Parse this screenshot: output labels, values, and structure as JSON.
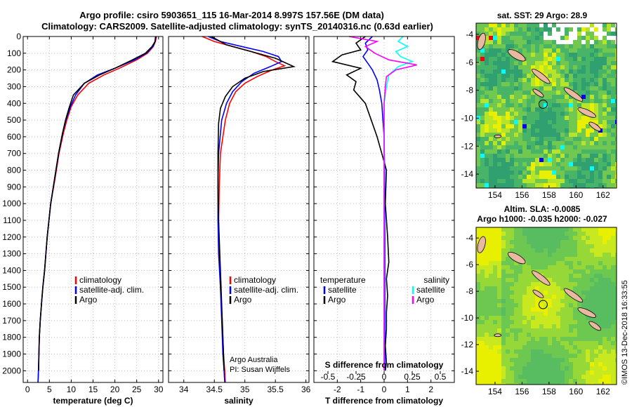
{
  "title_line1": "Argo profile: csiro 5903651_115 16-Mar-2014 8.997S 157.56E (DM data)",
  "title_line2": "Climatology: CARS2009. Satellite-adjusted climatology: synTS_20140316.nc (0.63d earlier)",
  "credit": "Argo Australia",
  "pi": "PI: Susan Wijffels",
  "stamp": "©IMOS 13-Dec-2018 16:33:55",
  "colors": {
    "climatology": "#ff0000",
    "satellite": "#0000ff",
    "argo": "#000000",
    "sat_t": "#0000ff",
    "sat_s": "#00ffff",
    "argo_s": "#ff00ff"
  },
  "chart_data": [
    {
      "id": "temp",
      "type": "line",
      "xlabel": "temperature (deg C)",
      "ylabel": "",
      "xlim": [
        -1,
        31
      ],
      "ylim": [
        2070,
        0
      ],
      "xticks": [
        "0",
        "5",
        "10",
        "15",
        "20",
        "25",
        "30"
      ],
      "xtick_values": [
        0,
        5,
        10,
        15,
        20,
        25,
        30
      ],
      "yticks": [
        "0",
        "100",
        "200",
        "300",
        "400",
        "500",
        "600",
        "700",
        "800",
        "900",
        "1000",
        "1100",
        "1200",
        "1300",
        "1400",
        "1500",
        "1600",
        "1700",
        "1800",
        "1900",
        "2000"
      ],
      "ytick_values": [
        0,
        100,
        200,
        300,
        400,
        500,
        600,
        700,
        800,
        900,
        1000,
        1100,
        1200,
        1300,
        1400,
        1500,
        1600,
        1700,
        1800,
        1900,
        2000
      ],
      "legend": [
        "climatology",
        "satellite-adj. clim.",
        "Argo"
      ],
      "series": [
        {
          "name": "climatology",
          "x": [
            29.5,
            29.3,
            28.8,
            27.5,
            25,
            21,
            17.5,
            14,
            11.5,
            10,
            9,
            8.2,
            7.2,
            6.3,
            5.3,
            4.5,
            3.9,
            3.5,
            3.2,
            2.9,
            2.7,
            2.6,
            2.5,
            2.4
          ],
          "y": [
            0,
            30,
            60,
            100,
            140,
            190,
            230,
            280,
            350,
            420,
            500,
            580,
            700,
            850,
            1000,
            1200,
            1400,
            1500,
            1600,
            1700,
            1800,
            1900,
            2000,
            2070
          ]
        },
        {
          "name": "satellite-adj. clim.",
          "x": [
            29.3,
            29.2,
            28.7,
            27.2,
            24.5,
            20,
            16,
            13,
            11,
            9.8,
            8.8,
            8,
            7.1,
            6.2,
            5.3,
            4.5,
            3.9,
            3.5,
            3.2,
            2.9,
            2.7,
            2.6,
            2.5,
            2.4
          ],
          "y": [
            0,
            30,
            60,
            100,
            140,
            190,
            230,
            280,
            350,
            420,
            500,
            580,
            700,
            850,
            1000,
            1200,
            1400,
            1500,
            1600,
            1700,
            1800,
            1900,
            2000,
            2070
          ]
        },
        {
          "name": "Argo",
          "x": [
            29.4,
            29.2,
            28.5,
            27,
            24,
            20,
            16.5,
            13,
            10.5,
            9.6,
            8.7,
            8,
            7.1,
            6.2,
            5.3,
            4.5,
            3.9,
            3.5,
            3.2,
            2.9,
            2.7,
            2.6,
            2.55
          ],
          "y": [
            0,
            30,
            60,
            100,
            140,
            190,
            230,
            280,
            350,
            420,
            500,
            580,
            700,
            850,
            1000,
            1200,
            1400,
            1500,
            1600,
            1700,
            1800,
            1900,
            2000
          ]
        }
      ]
    },
    {
      "id": "sal",
      "type": "line",
      "xlabel": "salinity",
      "ylabel": "",
      "xlim": [
        33.75,
        36.05
      ],
      "ylim": [
        2070,
        0
      ],
      "xticks": [
        "34",
        "34.5",
        "35",
        "35.5",
        "36"
      ],
      "xtick_values": [
        34,
        34.5,
        35,
        35.5,
        36
      ],
      "legend": [
        "climatology",
        "satellite-adj. clim.",
        "Argo"
      ],
      "series": [
        {
          "name": "climatology",
          "x": [
            34.3,
            34.5,
            34.8,
            35.1,
            35.35,
            35.5,
            35.65,
            35.45,
            35.2,
            35.0,
            34.85,
            34.75,
            34.68,
            34.6,
            34.58,
            34.57,
            34.58,
            34.6,
            34.63,
            34.65,
            34.67,
            34.68
          ],
          "y": [
            0,
            30,
            60,
            90,
            120,
            150,
            175,
            200,
            240,
            280,
            330,
            400,
            500,
            700,
            900,
            1100,
            1300,
            1500,
            1700,
            1900,
            2000,
            2070
          ]
        },
        {
          "name": "satellite-adj. clim.",
          "x": [
            34.4,
            34.6,
            34.95,
            35.3,
            35.55,
            35.6,
            35.45,
            35.15,
            34.95,
            34.8,
            34.7,
            34.62,
            34.57,
            34.56,
            34.56,
            34.57,
            34.6,
            34.62,
            34.64,
            34.66,
            34.67
          ],
          "y": [
            0,
            30,
            60,
            90,
            120,
            150,
            175,
            220,
            270,
            330,
            400,
            500,
            700,
            900,
            1100,
            1300,
            1500,
            1700,
            1900,
            2000,
            2070
          ]
        },
        {
          "name": "Argo",
          "x": [
            34.45,
            34.55,
            34.7,
            35.1,
            35.5,
            35.8,
            35.3,
            35.0,
            34.8,
            34.68,
            34.6,
            34.57,
            34.56,
            34.56,
            34.57,
            34.59,
            34.61,
            34.63,
            34.65,
            34.66
          ],
          "y": [
            0,
            20,
            50,
            90,
            130,
            180,
            210,
            250,
            300,
            360,
            430,
            520,
            700,
            900,
            1100,
            1300,
            1500,
            1700,
            1900,
            2000
          ]
        }
      ]
    },
    {
      "id": "diff",
      "type": "line",
      "xlabel": "T difference from climatology",
      "xlabel2": "S difference from climatology",
      "xlim": [
        -3,
        3
      ],
      "ylim": [
        2070,
        0
      ],
      "xticks": [
        "-2",
        "-1",
        "0",
        "1",
        "2"
      ],
      "xtick_values": [
        -2,
        -1,
        0,
        1,
        2
      ],
      "xticks2": [
        "-0.5",
        "-0.25",
        "0",
        "0.25",
        "0.5"
      ],
      "xtick2_values": [
        -2.4,
        -1.2,
        0,
        1.2,
        2.4
      ],
      "legend_left_title": "temperature",
      "legend_right_title": "salinity",
      "legend_left": [
        "satellite",
        "Argo"
      ],
      "legend_right": [
        "satellite",
        "Argo"
      ],
      "series": [
        {
          "name": "temperature satellite",
          "x": [
            -0.5,
            -0.8,
            -0.7,
            -0.9,
            -0.7,
            -0.5,
            -0.3,
            -0.2,
            -0.1,
            -0.05,
            0,
            0.02,
            0.02,
            0.03,
            0.03,
            0.03,
            0.03,
            0.03
          ],
          "y": [
            0,
            40,
            80,
            120,
            160,
            200,
            260,
            320,
            400,
            500,
            600,
            800,
            1000,
            1200,
            1400,
            1600,
            1800,
            2000
          ]
        },
        {
          "name": "temperature Argo",
          "x": [
            -0.8,
            -1.2,
            -1.0,
            -1.8,
            -2.2,
            -1.0,
            -1.6,
            -1.2,
            -1.3,
            -0.8,
            -0.6,
            -0.3,
            -0.1,
            0.1,
            0.05,
            0.15,
            0.2,
            0.1,
            0.15,
            0.1,
            0.1,
            0.05,
            0.1,
            0.05
          ],
          "y": [
            0,
            40,
            80,
            110,
            150,
            190,
            230,
            270,
            320,
            400,
            480,
            600,
            700,
            800,
            1000,
            1200,
            1350,
            1450,
            1550,
            1650,
            1750,
            1850,
            1950,
            2000
          ]
        },
        {
          "name": "salinity satellite",
          "x": [
            0.8,
            0.6,
            1.0,
            0.5,
            0.7,
            1.2,
            0.6,
            0.2,
            0.1,
            0,
            0,
            0,
            0,
            0,
            0,
            0,
            0,
            0
          ],
          "y": [
            0,
            30,
            60,
            90,
            120,
            150,
            180,
            230,
            300,
            400,
            500,
            700,
            900,
            1100,
            1300,
            1500,
            1700,
            2000
          ]
        },
        {
          "name": "salinity Argo",
          "x": [
            -1.5,
            -0.3,
            -0.8,
            -0.4,
            0.2,
            1.4,
            0.5,
            0.1,
            0.05,
            0,
            0,
            0,
            0,
            0,
            0,
            0,
            0
          ],
          "y": [
            0,
            30,
            60,
            100,
            140,
            170,
            200,
            240,
            300,
            400,
            600,
            800,
            1000,
            1200,
            1400,
            1600,
            2000
          ]
        }
      ]
    },
    {
      "id": "sst_map",
      "type": "heatmap",
      "title": "sat. SST: 29 Argo: 28.9",
      "xticks": [
        "154",
        "156",
        "158",
        "160",
        "162"
      ],
      "xtick_values": [
        154,
        156,
        158,
        160,
        162
      ],
      "yticks": [
        "-4",
        "-6",
        "-8",
        "-10",
        "-12",
        "-14"
      ],
      "ytick_values": [
        -4,
        -6,
        -8,
        -10,
        -12,
        -14
      ],
      "xlim": [
        152.6,
        163
      ],
      "ylim": [
        -15,
        -3.2
      ],
      "profile_lon": 157.56,
      "profile_lat": -8.997
    },
    {
      "id": "sla_map",
      "type": "heatmap",
      "title": "Altim. SLA: -0.0085",
      "subtitle": "Argo h1000: -0.035 h2000: -0.027",
      "xticks": [
        "154",
        "156",
        "158",
        "160",
        "162"
      ],
      "xtick_values": [
        154,
        156,
        158,
        160,
        162
      ],
      "yticks": [
        "-4",
        "-6",
        "-8",
        "-10",
        "-12",
        "-14"
      ],
      "ytick_values": [
        -4,
        -6,
        -8,
        -10,
        -12,
        -14
      ],
      "xlim": [
        152.6,
        163
      ],
      "ylim": [
        -15,
        -3.2
      ],
      "profile_lon": 157.56,
      "profile_lat": -8.997
    }
  ]
}
